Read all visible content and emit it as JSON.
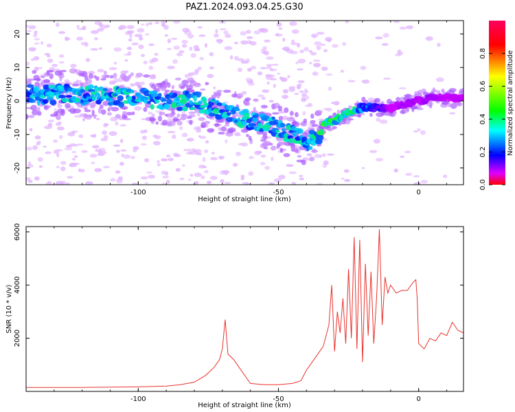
{
  "figure_title": "PAZ1.2024.093.04.25.G30",
  "colors": {
    "snr_line": "#e8302a",
    "frame": "#000000",
    "background": "#ffffff"
  },
  "chart_data": [
    {
      "type": "heatmap",
      "title": "PAZ1.2024.093.04.25.G30",
      "xlabel": "Height of straight line (km)",
      "ylabel": "Frequency (Hz)",
      "xlim": [
        -140,
        16
      ],
      "ylim": [
        -25,
        24
      ],
      "xticks": [
        -100,
        -50,
        0
      ],
      "yticks": [
        -20,
        -10,
        0,
        10,
        20
      ],
      "colormap": "hsv",
      "grid": false,
      "colorbar": {
        "label": "Normalized spectral amplitude",
        "range": [
          0,
          1
        ],
        "ticks": [
          0.0,
          0.2,
          0.4,
          0.6,
          0.8
        ]
      },
      "ridge": {
        "x": [
          -140,
          -120,
          -100,
          -90,
          -80,
          -70,
          -60,
          -50,
          -45,
          -40,
          -36,
          -34,
          -30,
          -28,
          -24,
          -20,
          -15,
          -10,
          -5,
          0,
          4,
          10,
          16
        ],
        "freq": [
          2,
          2,
          1,
          0,
          0,
          -3,
          -6,
          -8,
          -10,
          -12,
          -11,
          -7,
          -6,
          -5,
          -3,
          -2,
          -2,
          -2,
          -1,
          0,
          1,
          1,
          1
        ],
        "amplitude": [
          0.55,
          0.65,
          0.7,
          0.72,
          0.72,
          0.7,
          0.66,
          0.65,
          0.66,
          0.68,
          0.7,
          0.55,
          0.45,
          0.4,
          0.42,
          0.3,
          0.25,
          0.05,
          0.1,
          0.08,
          0.1,
          0.07,
          0.07
        ]
      }
    },
    {
      "type": "line",
      "xlabel": "Height of straight line (km)",
      "ylabel": "SNR (10 * v/v)",
      "xlim": [
        -140,
        16
      ],
      "ylim": [
        0,
        6200
      ],
      "xticks": [
        -100,
        -50,
        0
      ],
      "yticks": [
        2000,
        4000,
        6000
      ],
      "grid": false,
      "series": [
        {
          "x": [
            -140,
            -120,
            -100,
            -90,
            -85,
            -80,
            -76,
            -73,
            -71,
            -70,
            -69,
            -68,
            -66,
            -64,
            -62,
            -60,
            -55,
            -50,
            -45,
            -42,
            -40,
            -38,
            -36,
            -34,
            -32,
            -31,
            -30,
            -29,
            -28,
            -27,
            -26,
            -25,
            -24,
            -23,
            -22,
            -21,
            -20,
            -19,
            -18,
            -17,
            -16,
            -15,
            -14,
            -13,
            -12,
            -11,
            -10,
            -8,
            -6,
            -4,
            -2,
            -1,
            -0.5,
            0,
            2,
            4,
            6,
            8,
            10,
            12,
            14,
            16
          ],
          "values": [
            150,
            150,
            170,
            200,
            250,
            350,
            600,
            900,
            1200,
            1600,
            2700,
            1400,
            1200,
            900,
            600,
            300,
            250,
            250,
            300,
            400,
            800,
            1100,
            1400,
            1700,
            2500,
            4000,
            1500,
            3000,
            2200,
            3500,
            1800,
            4600,
            2000,
            5800,
            1600,
            5700,
            1100,
            4800,
            2100,
            4500,
            1800,
            3500,
            6100,
            2500,
            4300,
            3700,
            4000,
            3700,
            3800,
            3800,
            4100,
            4200,
            3500,
            1800,
            1600,
            2000,
            1900,
            2200,
            2100,
            2600,
            2300,
            2200
          ]
        }
      ]
    }
  ]
}
